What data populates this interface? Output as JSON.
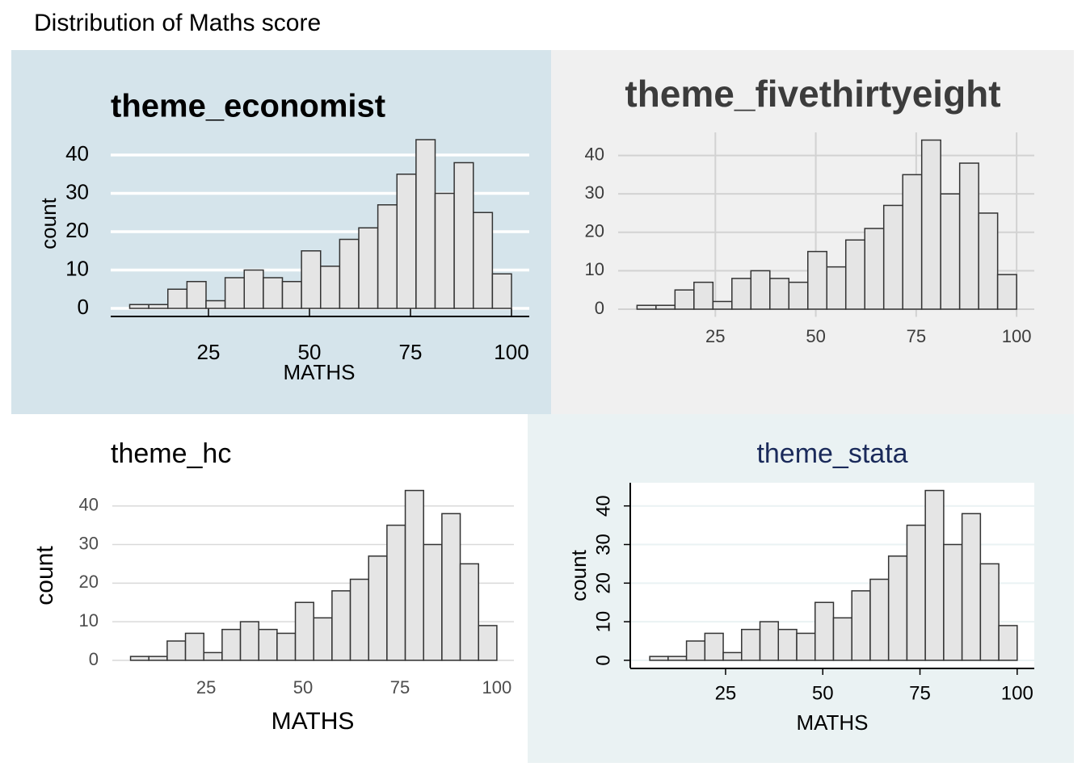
{
  "title": "Distribution of Maths score",
  "chart_data": [
    {
      "type": "histogram",
      "title": "theme_economist",
      "xlabel": "MATHS",
      "ylabel": "count",
      "bins": [
        5.5,
        10.225,
        14.95,
        19.675,
        24.4,
        29.125,
        33.85,
        38.575,
        43.3,
        48.025,
        52.75,
        57.475,
        62.2,
        66.925,
        71.65,
        76.375,
        81.1,
        85.825,
        90.55,
        95.275,
        100
      ],
      "counts": [
        1,
        1,
        5,
        7,
        2,
        8,
        10,
        8,
        7,
        15,
        11,
        18,
        21,
        27,
        35,
        44,
        30,
        38,
        25,
        9
      ],
      "color": "#e5e5e5",
      "background": "#d5e4eb",
      "grid": "y",
      "xlim": [
        0.8,
        104.4
      ],
      "ylim": [
        -2,
        46
      ],
      "xticks": [
        25,
        50,
        75,
        100
      ],
      "yticks": [
        0,
        10,
        20,
        30,
        40
      ]
    },
    {
      "type": "histogram",
      "title": "theme_fivethirtyeight",
      "bins": [
        5.5,
        10.225,
        14.95,
        19.675,
        24.4,
        29.125,
        33.85,
        38.575,
        43.3,
        48.025,
        52.75,
        57.475,
        62.2,
        66.925,
        71.65,
        76.375,
        81.1,
        85.825,
        90.55,
        95.275,
        100
      ],
      "counts": [
        1,
        1,
        5,
        7,
        2,
        8,
        10,
        8,
        7,
        15,
        11,
        18,
        21,
        27,
        35,
        44,
        30,
        38,
        25,
        9
      ],
      "color": "#e5e5e5",
      "background": "#f0f0f0",
      "grid": "xy",
      "xlim": [
        0.8,
        104.4
      ],
      "ylim": [
        -2,
        46
      ],
      "xticks": [
        25,
        50,
        75,
        100
      ],
      "yticks": [
        0,
        10,
        20,
        30,
        40
      ]
    },
    {
      "type": "histogram",
      "title": "theme_hc",
      "xlabel": "MATHS",
      "ylabel": "count",
      "bins": [
        5.5,
        10.225,
        14.95,
        19.675,
        24.4,
        29.125,
        33.85,
        38.575,
        43.3,
        48.025,
        52.75,
        57.475,
        62.2,
        66.925,
        71.65,
        76.375,
        81.1,
        85.825,
        90.55,
        95.275,
        100
      ],
      "counts": [
        1,
        1,
        5,
        7,
        2,
        8,
        10,
        8,
        7,
        15,
        11,
        18,
        21,
        27,
        35,
        44,
        30,
        38,
        25,
        9
      ],
      "color": "#e5e5e5",
      "background": "#ffffff",
      "grid": "y",
      "xlim": [
        0.8,
        104.4
      ],
      "ylim": [
        -2,
        46
      ],
      "xticks": [
        25,
        50,
        75,
        100
      ],
      "yticks": [
        0,
        10,
        20,
        30,
        40
      ]
    },
    {
      "type": "histogram",
      "title": "theme_stata",
      "xlabel": "MATHS",
      "ylabel": "count",
      "bins": [
        5.5,
        10.225,
        14.95,
        19.675,
        24.4,
        29.125,
        33.85,
        38.575,
        43.3,
        48.025,
        52.75,
        57.475,
        62.2,
        66.925,
        71.65,
        76.375,
        81.1,
        85.825,
        90.55,
        95.275,
        100
      ],
      "counts": [
        1,
        1,
        5,
        7,
        2,
        8,
        10,
        8,
        7,
        15,
        11,
        18,
        21,
        27,
        35,
        44,
        30,
        38,
        25,
        9
      ],
      "color": "#e5e5e5",
      "background": "#eaf2f3",
      "grid": "y",
      "xlim": [
        0.8,
        104.4
      ],
      "ylim": [
        -2,
        46
      ],
      "xticks": [
        25,
        50,
        75,
        100
      ],
      "yticks": [
        0,
        10,
        20,
        30,
        40
      ]
    }
  ]
}
